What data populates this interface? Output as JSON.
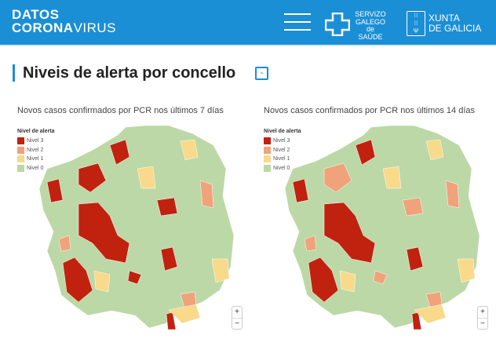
{
  "header": {
    "logo_line1": "DATOS",
    "logo_line2_bold": "CORONA",
    "logo_line2_light": "VIRUS",
    "sgs_logo": "SERVIZO GALEGO de SAÚDE",
    "xunta_line1": "XUNTA",
    "xunta_line2": "DE GALICIA",
    "menu_icon": "hamburger-icon"
  },
  "section": {
    "title": "Niveis de alerta por concello",
    "collapse_label": "-"
  },
  "legend": {
    "title": "Nivel de alerta",
    "items": [
      {
        "label": "Nivel 3",
        "color": "#c0220f"
      },
      {
        "label": "Nivel 2",
        "color": "#f0a27a"
      },
      {
        "label": "Nivel 1",
        "color": "#f9d98a"
      },
      {
        "label": "Nivel 0",
        "color": "#bcd8a6"
      }
    ]
  },
  "maps": [
    {
      "subtitle": "Novos casos confirmados por PCR nos últimos 7 días",
      "zoom_in": "+",
      "zoom_out": "−"
    },
    {
      "subtitle": "Novos casos confirmados por PCR nos últimos 14 días",
      "zoom_in": "+",
      "zoom_out": "−"
    }
  ]
}
